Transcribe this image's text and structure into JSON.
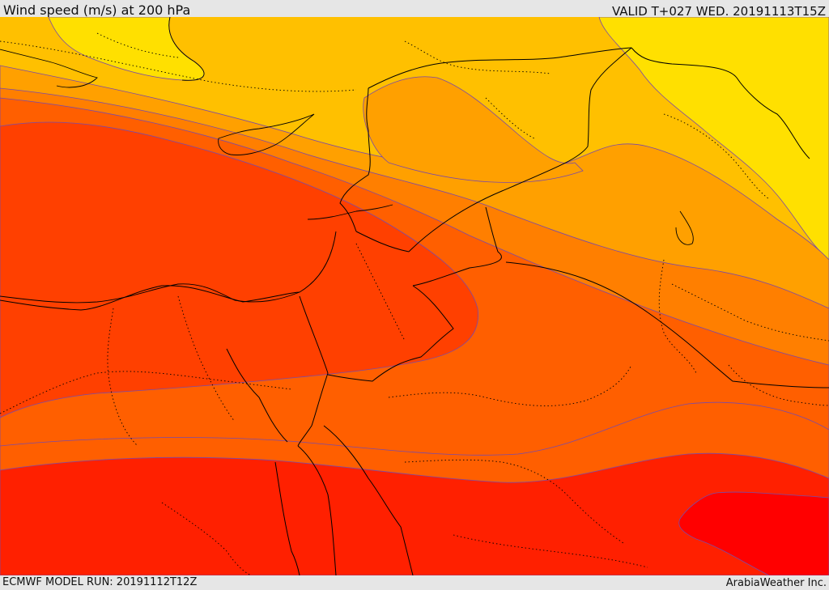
{
  "header": {
    "title": "Wind speed (m/s) at 200 hPa",
    "valid_time": "VALID T+027 WED. 20191113T15Z"
  },
  "footer": {
    "model_run": "ECMWF MODEL RUN: 20191112T12Z",
    "credit": "ArabiaWeather Inc."
  },
  "colors": {
    "band_yellow": "#ffe000",
    "band_light_orange": "#ffc000",
    "band_orange": "#ffa000",
    "band_dark_orange": "#ff7f00",
    "band_red_orange": "#ff5f00",
    "band_red": "#ff4000",
    "band_deep_red": "#ff2000",
    "band_max_red": "#ff0000",
    "contour_line": "#7a4aa8",
    "border_line": "#000000"
  }
}
